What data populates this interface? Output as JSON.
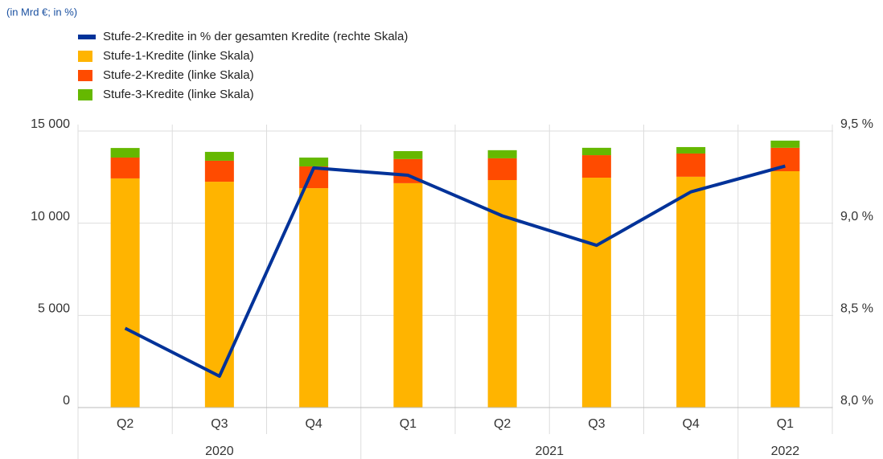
{
  "chart_data": {
    "type": "bar_line",
    "subtitle": "(in Mrd €; in %)",
    "categories": [
      "Q2",
      "Q3",
      "Q4",
      "Q1",
      "Q2",
      "Q3",
      "Q4",
      "Q1"
    ],
    "category_years": [
      "2020",
      "2020",
      "2020",
      "2021",
      "2021",
      "2021",
      "2021",
      "2022"
    ],
    "series": [
      {
        "name": "Stufe-2-Kredite in % der gesamten Kredite (rechte Skala)",
        "color": "#003299",
        "axis": "y2",
        "kind": "line",
        "values": [
          8.43,
          8.17,
          9.3,
          9.26,
          9.04,
          8.88,
          9.17,
          9.31
        ]
      },
      {
        "name": "Stufe-1-Kredite (linke Skala)",
        "color": "#ffb400",
        "kind": "bar",
        "values": [
          12430,
          12250,
          11900,
          12170,
          12340,
          12470,
          12520,
          12820
        ]
      },
      {
        "name": "Stufe-2-Kredite (linke Skala)",
        "color": "#ff4b00",
        "kind": "bar",
        "values": [
          1130,
          1140,
          1180,
          1310,
          1180,
          1220,
          1260,
          1270
        ]
      },
      {
        "name": "Stufe-3-Kredite (linke Skala)",
        "color": "#65b800",
        "kind": "bar",
        "values": [
          520,
          480,
          480,
          430,
          440,
          400,
          350,
          390
        ]
      }
    ],
    "ylim": [
      0,
      15000
    ],
    "yticks": [
      {
        "value": 0,
        "label": "0"
      },
      {
        "value": 5000,
        "label": "5 000"
      },
      {
        "value": 10000,
        "label": "10 000"
      },
      {
        "value": 15000,
        "label": "15 000"
      }
    ],
    "y2lim": [
      8.0,
      9.5
    ],
    "y2ticks": [
      {
        "value": 8.0,
        "label": "8,0 %"
      },
      {
        "value": 8.5,
        "label": "8,5 %"
      },
      {
        "value": 9.0,
        "label": "9,0 %"
      },
      {
        "value": 9.5,
        "label": "9,5 %"
      }
    ],
    "grid": true
  }
}
